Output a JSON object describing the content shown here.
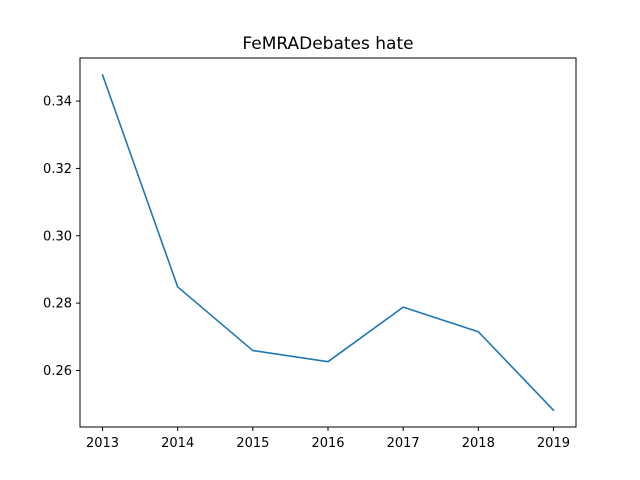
{
  "chart_data": {
    "type": "line",
    "title": "FeMRADebates hate",
    "xlabel": "",
    "ylabel": "",
    "x": [
      2013,
      2014,
      2015,
      2016,
      2017,
      2018,
      2019
    ],
    "x_tick_labels": [
      "2013",
      "2014",
      "2015",
      "2016",
      "2017",
      "2018",
      "2019"
    ],
    "series": [
      {
        "values": [
          0.3478,
          0.2848,
          0.2659,
          0.2626,
          0.2788,
          0.2715,
          0.2482
        ],
        "color": "#1f77b4"
      }
    ],
    "y_ticks": [
      0.26,
      0.28,
      0.3,
      0.32,
      0.34
    ],
    "y_tick_labels": [
      "0.26",
      "0.28",
      "0.30",
      "0.32",
      "0.34"
    ],
    "xlim": [
      2012.7,
      2019.3
    ],
    "ylim": [
      0.2432,
      0.3528
    ],
    "grid": false,
    "legend": "none"
  }
}
